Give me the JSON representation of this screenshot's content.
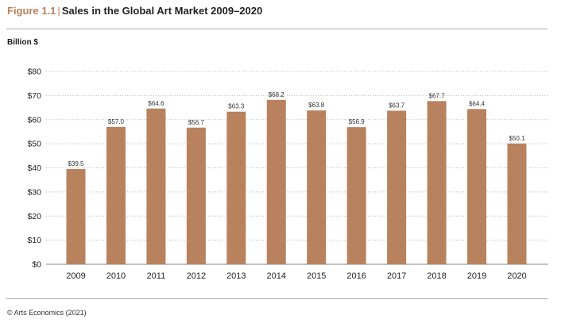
{
  "figure": {
    "number": "Figure 1.1",
    "separator": "|",
    "title": "Sales in the Global Art Market 2009–2020"
  },
  "source": "© Arts Economics (2021)",
  "colors": {
    "bar": "#b8825e",
    "accent": "#b87f5b",
    "grid": "#bbbbbb",
    "rule": "#a8a8a8"
  },
  "chart_data": {
    "type": "bar",
    "title": "Sales in the Global Art Market 2009–2020",
    "xlabel": "",
    "ylabel": "Billion $",
    "ylim": [
      0,
      80
    ],
    "grid": true,
    "yticks": [
      "$0",
      "$10",
      "$20",
      "$30",
      "$40",
      "$50",
      "$60",
      "$70",
      "$80"
    ],
    "categories": [
      "2009",
      "2010",
      "2011",
      "2012",
      "2013",
      "2014",
      "2015",
      "2016",
      "2017",
      "2018",
      "2019",
      "2020"
    ],
    "values": [
      39.5,
      57.0,
      64.6,
      56.7,
      63.3,
      68.2,
      63.8,
      56.9,
      63.7,
      67.7,
      64.4,
      50.1
    ],
    "data_labels": [
      "$39.5",
      "$57.0",
      "$64.6",
      "$56.7",
      "$63.3",
      "$68.2",
      "$63.8",
      "$56.9",
      "$63.7",
      "$67.7",
      "$64.4",
      "$50.1"
    ]
  }
}
